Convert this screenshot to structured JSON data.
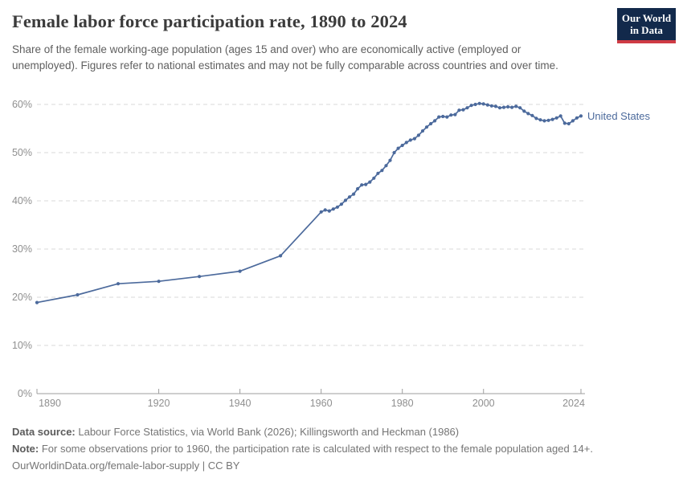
{
  "header": {
    "title": "Female labor force participation rate, 1890 to 2024",
    "subtitle": "Share of the female working-age population (ages 15 and over) who are economically active (employed or unemployed). Figures refer to national estimates and may not be fully comparable across countries and over time.",
    "logo": {
      "line1": "Our World",
      "line2": "in Data"
    }
  },
  "chart_data": {
    "type": "line",
    "title": "Female labor force participation rate, 1890 to 2024",
    "xlabel": "",
    "ylabel": "",
    "xlim": [
      1890,
      2024
    ],
    "ylim": [
      0,
      60
    ],
    "x_ticks": [
      1890,
      1920,
      1940,
      1960,
      1980,
      2000,
      2024
    ],
    "y_ticks": [
      0,
      10,
      20,
      30,
      40,
      50,
      60
    ],
    "y_tick_suffix": "%",
    "grid": "horizontal-dashed",
    "legend_position": "end-of-line-label",
    "series": [
      {
        "name": "United States",
        "color": "#4c6a9c",
        "points": [
          [
            1890,
            18.9
          ],
          [
            1900,
            20.5
          ],
          [
            1910,
            22.8
          ],
          [
            1920,
            23.3
          ],
          [
            1930,
            24.3
          ],
          [
            1940,
            25.4
          ],
          [
            1950,
            28.6
          ],
          [
            1960,
            37.7
          ],
          [
            1961,
            38.1
          ],
          [
            1962,
            37.9
          ],
          [
            1963,
            38.3
          ],
          [
            1964,
            38.7
          ],
          [
            1965,
            39.3
          ],
          [
            1966,
            40.1
          ],
          [
            1967,
            40.8
          ],
          [
            1968,
            41.4
          ],
          [
            1969,
            42.5
          ],
          [
            1970,
            43.3
          ],
          [
            1971,
            43.4
          ],
          [
            1972,
            43.9
          ],
          [
            1973,
            44.7
          ],
          [
            1974,
            45.7
          ],
          [
            1975,
            46.3
          ],
          [
            1976,
            47.3
          ],
          [
            1977,
            48.4
          ],
          [
            1978,
            50.0
          ],
          [
            1979,
            50.9
          ],
          [
            1980,
            51.5
          ],
          [
            1981,
            52.1
          ],
          [
            1982,
            52.6
          ],
          [
            1983,
            52.9
          ],
          [
            1984,
            53.6
          ],
          [
            1985,
            54.5
          ],
          [
            1986,
            55.3
          ],
          [
            1987,
            56.0
          ],
          [
            1988,
            56.6
          ],
          [
            1989,
            57.4
          ],
          [
            1990,
            57.5
          ],
          [
            1991,
            57.4
          ],
          [
            1992,
            57.8
          ],
          [
            1993,
            57.9
          ],
          [
            1994,
            58.8
          ],
          [
            1995,
            58.9
          ],
          [
            1996,
            59.3
          ],
          [
            1997,
            59.8
          ],
          [
            1998,
            60.0
          ],
          [
            1999,
            60.2
          ],
          [
            2000,
            60.1
          ],
          [
            2001,
            59.9
          ],
          [
            2002,
            59.7
          ],
          [
            2003,
            59.6
          ],
          [
            2004,
            59.3
          ],
          [
            2005,
            59.4
          ],
          [
            2006,
            59.5
          ],
          [
            2007,
            59.4
          ],
          [
            2008,
            59.6
          ],
          [
            2009,
            59.3
          ],
          [
            2010,
            58.6
          ],
          [
            2011,
            58.1
          ],
          [
            2012,
            57.7
          ],
          [
            2013,
            57.1
          ],
          [
            2014,
            56.8
          ],
          [
            2015,
            56.6
          ],
          [
            2016,
            56.7
          ],
          [
            2017,
            56.9
          ],
          [
            2018,
            57.2
          ],
          [
            2019,
            57.6
          ],
          [
            2020,
            56.1
          ],
          [
            2021,
            56.0
          ],
          [
            2022,
            56.6
          ],
          [
            2023,
            57.2
          ],
          [
            2024,
            57.6
          ]
        ]
      }
    ]
  },
  "footer": {
    "data_source_label": "Data source:",
    "data_source_text": " Labour Force Statistics, via World Bank (2026); Killingsworth and Heckman (1986)",
    "note_label": "Note:",
    "note_text": " For some observations prior to 1960, the participation rate is calculated with respect to the female population aged 14+.",
    "citation": "OurWorldinData.org/female-labor-supply | CC BY"
  },
  "colors": {
    "line": "#4c6a9c",
    "entity_label": "#4c6a9c",
    "gridline": "#dadada",
    "axis_line": "#9e9e9e",
    "tick_label": "#8f8f8f",
    "title": "#3b3b3b",
    "subtitle": "#5f5f5f",
    "footer_text": "#757575",
    "logo_bg": "#12294b",
    "logo_stripe": "#cf3b44"
  }
}
